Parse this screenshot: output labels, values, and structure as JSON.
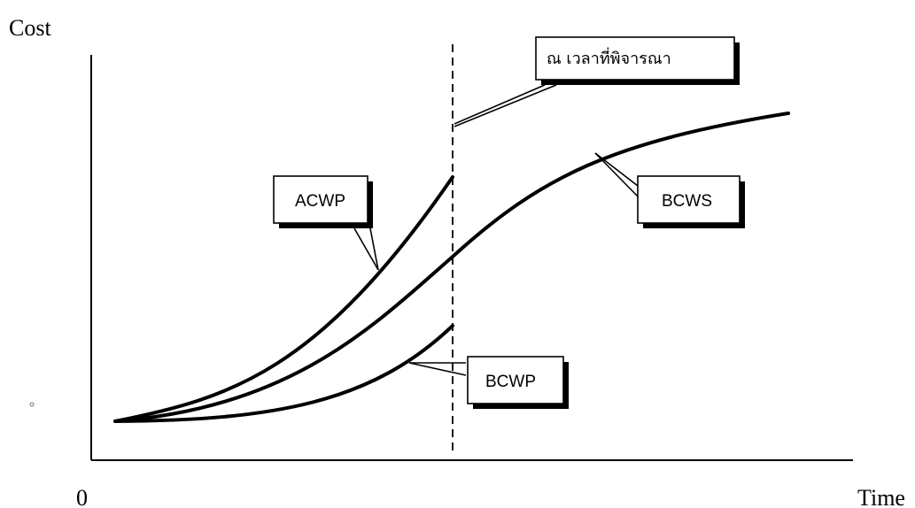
{
  "chart_data": {
    "type": "line",
    "title": "",
    "ylabel": "Cost",
    "xlabel": "Time",
    "origin_label": "0",
    "grid": false,
    "legend": "none",
    "status_date_label": "ณ เวลาที่พิจารณา",
    "series": [
      {
        "name": "ACWP",
        "shape": "rising curve ending at status date, highest of the three"
      },
      {
        "name": "BCWS",
        "shape": "S-curve spanning the full time range"
      },
      {
        "name": "BCWP",
        "shape": "rising curve ending at status date, lowest of the three"
      }
    ]
  }
}
